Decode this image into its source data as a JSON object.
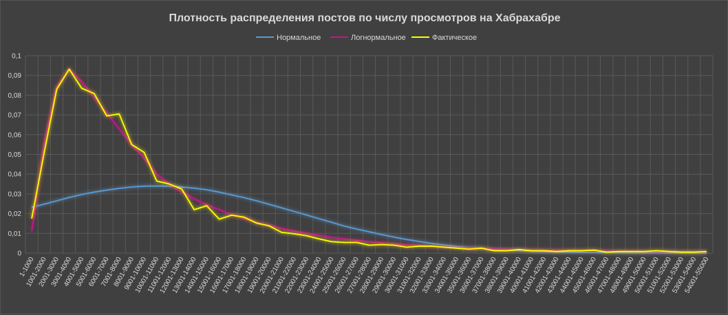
{
  "chart_data": {
    "type": "line",
    "title": "Плотность распределения постов по числу просмотров на Хабрахабре",
    "legend_position": "top-center",
    "grid": true,
    "ylim": [
      0,
      0.1
    ],
    "y_ticks": [
      "0",
      "0,01",
      "0,02",
      "0,03",
      "0,04",
      "0,05",
      "0,06",
      "0,07",
      "0,08",
      "0,09",
      "0,1"
    ],
    "categories": [
      "1-1000",
      "1001-2000",
      "2001-3000",
      "3001-4000",
      "4001-5000",
      "5001-6000",
      "6001-7000",
      "7001-8000",
      "8001-9000",
      "9001-10000",
      "10001-11000",
      "11001-12000",
      "12001-13000",
      "13001-14000",
      "14001-15000",
      "15001-16000",
      "16001-17000",
      "17001-18000",
      "18001-19000",
      "19001-20000",
      "20001-21000",
      "21001-22000",
      "22001-23000",
      "23001-24000",
      "24001-25000",
      "25001-26000",
      "26001-27000",
      "27001-28000",
      "28001-29000",
      "29001-30000",
      "30001-31000",
      "31001-32000",
      "32001-33000",
      "33001-34000",
      "34001-35000",
      "35001-36000",
      "36001-37000",
      "37001-38000",
      "38001-39000",
      "39001-40000",
      "40001-41000",
      "41001-42000",
      "42001-43000",
      "43001-44000",
      "44001-45000",
      "45001-46000",
      "46001-47000",
      "47001-48000",
      "48001-49000",
      "49001-50000",
      "50001-51000",
      "51001-52000",
      "52001-53000",
      "53001-54000",
      "54001-55000"
    ],
    "series": [
      {
        "name": "Нормальное",
        "color": "#5b9bd5",
        "values": [
          0.0232,
          0.0248,
          0.0265,
          0.0282,
          0.0297,
          0.0309,
          0.0319,
          0.0328,
          0.0335,
          0.0339,
          0.034,
          0.0339,
          0.0335,
          0.0329,
          0.0321,
          0.0309,
          0.0295,
          0.0281,
          0.0265,
          0.0247,
          0.0229,
          0.0211,
          0.0193,
          0.0174,
          0.0156,
          0.0137,
          0.0122,
          0.0108,
          0.0094,
          0.0081,
          0.0069,
          0.0059,
          0.0049,
          0.0041,
          0.0034,
          0.0028,
          0.0023,
          0.0018,
          0.0015,
          0.0012,
          0.0009,
          0.0007,
          0.0006,
          0.0005,
          0.0004,
          0.0003,
          0.0002,
          0.0002,
          0.0001,
          0.0001,
          0.0001,
          0.0001,
          0.0,
          0.0,
          0.0
        ]
      },
      {
        "name": "Логнормальное",
        "color": "#c7148c",
        "values": [
          0.011,
          0.056,
          0.084,
          0.093,
          0.087,
          0.079,
          0.071,
          0.063,
          0.055,
          0.048,
          0.04,
          0.035,
          0.031,
          0.0275,
          0.0245,
          0.022,
          0.0195,
          0.0175,
          0.0155,
          0.014,
          0.0125,
          0.0112,
          0.01,
          0.009,
          0.008,
          0.0072,
          0.0065,
          0.0058,
          0.0052,
          0.0047,
          0.0042,
          0.0038,
          0.0034,
          0.0031,
          0.0028,
          0.0026,
          0.0023,
          0.0021,
          0.0019,
          0.0018,
          0.0016,
          0.0015,
          0.0014,
          0.0013,
          0.0012,
          0.0011,
          0.001,
          0.0009,
          0.0009,
          0.0008,
          0.0008,
          0.0007,
          0.0007,
          0.0006,
          0.0006
        ]
      },
      {
        "name": "Фактическое",
        "color": "#ffff00",
        "values": [
          0.0175,
          0.051,
          0.083,
          0.0932,
          0.0835,
          0.0808,
          0.0695,
          0.0705,
          0.055,
          0.051,
          0.0365,
          0.035,
          0.0325,
          0.022,
          0.024,
          0.0172,
          0.0192,
          0.0182,
          0.0152,
          0.0138,
          0.0105,
          0.0098,
          0.0088,
          0.0072,
          0.0058,
          0.0054,
          0.0054,
          0.004,
          0.0043,
          0.004,
          0.003,
          0.0035,
          0.0035,
          0.003,
          0.0025,
          0.002,
          0.0025,
          0.0012,
          0.0012,
          0.0018,
          0.0012,
          0.0012,
          0.0008,
          0.0012,
          0.0012,
          0.0015,
          0.0005,
          0.0008,
          0.0008,
          0.0008,
          0.0012,
          0.0008,
          0.0005,
          0.0005,
          0.0008
        ]
      }
    ]
  }
}
